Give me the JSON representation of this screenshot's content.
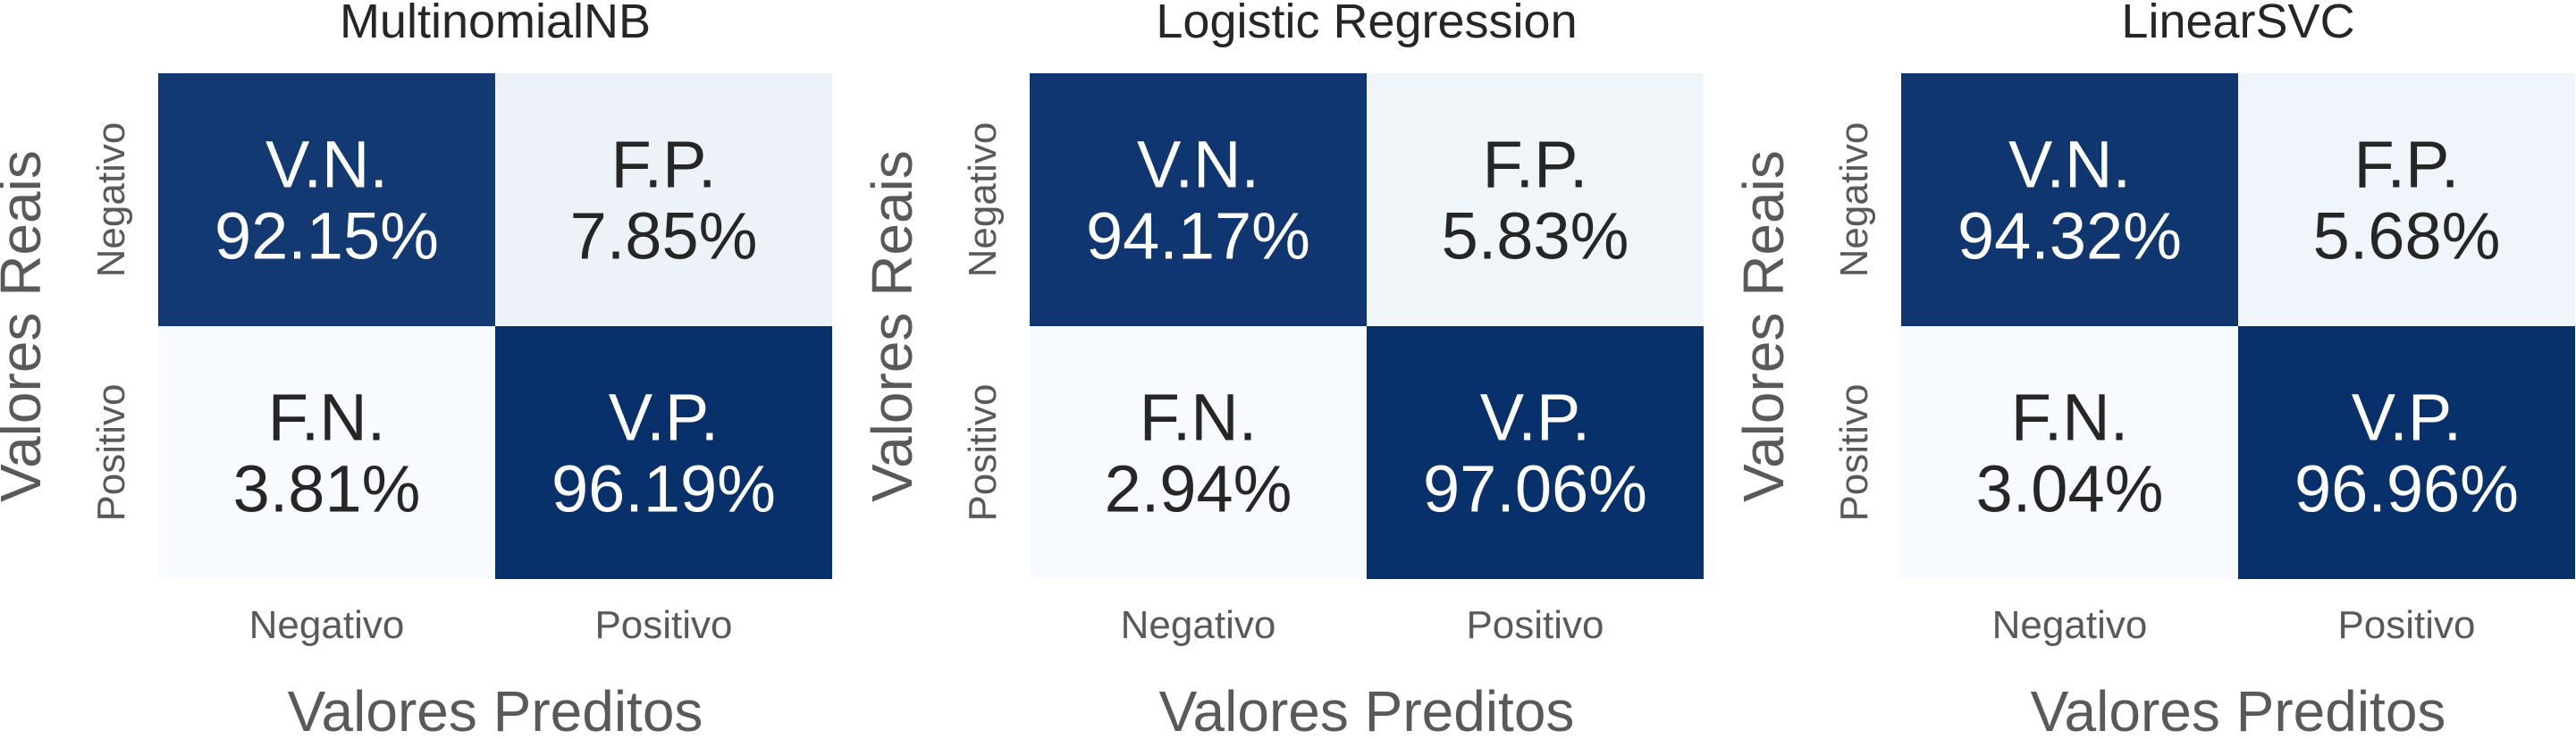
{
  "chart_data": [
    {
      "type": "heatmap",
      "title": "MultinomialNB",
      "xlabel": "Valores Preditos",
      "ylabel": "Valores Reais",
      "x_ticks": [
        "Negativo",
        "Positivo"
      ],
      "y_ticks": [
        "Negativo",
        "Positivo"
      ],
      "cells": [
        [
          {
            "abbr": "V.N.",
            "value": 92.15,
            "text": "92.15%"
          },
          {
            "abbr": "F.P.",
            "value": 7.85,
            "text": "7.85%"
          }
        ],
        [
          {
            "abbr": "F.N.",
            "value": 3.81,
            "text": "3.81%"
          },
          {
            "abbr": "V.P.",
            "value": 96.19,
            "text": "96.19%"
          }
        ]
      ],
      "colorbar": false
    },
    {
      "type": "heatmap",
      "title": "Logistic Regression",
      "xlabel": "Valores Preditos",
      "ylabel": "Valores Reais",
      "x_ticks": [
        "Negativo",
        "Positivo"
      ],
      "y_ticks": [
        "Negativo",
        "Positivo"
      ],
      "cells": [
        [
          {
            "abbr": "V.N.",
            "value": 94.17,
            "text": "94.17%"
          },
          {
            "abbr": "F.P.",
            "value": 5.83,
            "text": "5.83%"
          }
        ],
        [
          {
            "abbr": "F.N.",
            "value": 2.94,
            "text": "2.94%"
          },
          {
            "abbr": "V.P.",
            "value": 97.06,
            "text": "97.06%"
          }
        ]
      ],
      "colorbar": false
    },
    {
      "type": "heatmap",
      "title": "LinearSVC",
      "xlabel": "Valores Preditos",
      "ylabel": "Valores Reais",
      "x_ticks": [
        "Negativo",
        "Positivo"
      ],
      "y_ticks": [
        "Negativo",
        "Positivo"
      ],
      "cells": [
        [
          {
            "abbr": "V.N.",
            "value": 94.32,
            "text": "94.32%"
          },
          {
            "abbr": "F.P.",
            "value": 5.68,
            "text": "5.68%"
          }
        ],
        [
          {
            "abbr": "F.N.",
            "value": 3.04,
            "text": "3.04%"
          },
          {
            "abbr": "V.P.",
            "value": 96.96,
            "text": "96.96%"
          }
        ]
      ],
      "colorbar": false
    }
  ],
  "colors": {
    "high": "#08306b",
    "low": "#f7fbff",
    "text_on_dark": "#ffffff",
    "text_on_light": "#262626"
  }
}
